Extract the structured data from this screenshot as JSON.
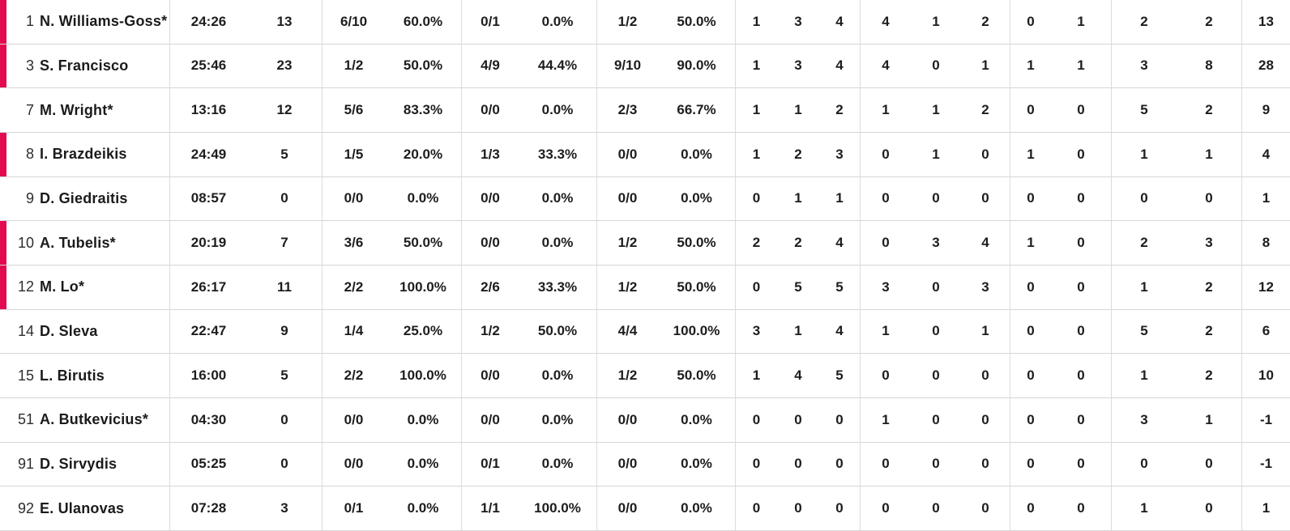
{
  "accent_color": "#e30b4f",
  "grid_color": "#d9d9d9",
  "table": {
    "players": [
      {
        "num": "1",
        "name": "N. Williams-Goss*",
        "on_court": true,
        "min": "24:26",
        "pts": "13",
        "fg2": "6/10",
        "fg2_pct": "60.0%",
        "fg3": "0/1",
        "fg3_pct": "0.0%",
        "ft": "1/2",
        "ft_pct": "50.0%",
        "oreb": "1",
        "dreb": "3",
        "reb": "4",
        "ast": "4",
        "stl": "1",
        "to": "2",
        "blk": "0",
        "blka": "1",
        "pf": "2",
        "fd": "2",
        "pir": "13"
      },
      {
        "num": "3",
        "name": "S. Francisco",
        "on_court": true,
        "min": "25:46",
        "pts": "23",
        "fg2": "1/2",
        "fg2_pct": "50.0%",
        "fg3": "4/9",
        "fg3_pct": "44.4%",
        "ft": "9/10",
        "ft_pct": "90.0%",
        "oreb": "1",
        "dreb": "3",
        "reb": "4",
        "ast": "4",
        "stl": "0",
        "to": "1",
        "blk": "1",
        "blka": "1",
        "pf": "3",
        "fd": "8",
        "pir": "28"
      },
      {
        "num": "7",
        "name": "M. Wright*",
        "on_court": false,
        "min": "13:16",
        "pts": "12",
        "fg2": "5/6",
        "fg2_pct": "83.3%",
        "fg3": "0/0",
        "fg3_pct": "0.0%",
        "ft": "2/3",
        "ft_pct": "66.7%",
        "oreb": "1",
        "dreb": "1",
        "reb": "2",
        "ast": "1",
        "stl": "1",
        "to": "2",
        "blk": "0",
        "blka": "0",
        "pf": "5",
        "fd": "2",
        "pir": "9"
      },
      {
        "num": "8",
        "name": "I. Brazdeikis",
        "on_court": true,
        "min": "24:49",
        "pts": "5",
        "fg2": "1/5",
        "fg2_pct": "20.0%",
        "fg3": "1/3",
        "fg3_pct": "33.3%",
        "ft": "0/0",
        "ft_pct": "0.0%",
        "oreb": "1",
        "dreb": "2",
        "reb": "3",
        "ast": "0",
        "stl": "1",
        "to": "0",
        "blk": "1",
        "blka": "0",
        "pf": "1",
        "fd": "1",
        "pir": "4"
      },
      {
        "num": "9",
        "name": "D. Giedraitis",
        "on_court": false,
        "min": "08:57",
        "pts": "0",
        "fg2": "0/0",
        "fg2_pct": "0.0%",
        "fg3": "0/0",
        "fg3_pct": "0.0%",
        "ft": "0/0",
        "ft_pct": "0.0%",
        "oreb": "0",
        "dreb": "1",
        "reb": "1",
        "ast": "0",
        "stl": "0",
        "to": "0",
        "blk": "0",
        "blka": "0",
        "pf": "0",
        "fd": "0",
        "pir": "1"
      },
      {
        "num": "10",
        "name": "A. Tubelis*",
        "on_court": true,
        "min": "20:19",
        "pts": "7",
        "fg2": "3/6",
        "fg2_pct": "50.0%",
        "fg3": "0/0",
        "fg3_pct": "0.0%",
        "ft": "1/2",
        "ft_pct": "50.0%",
        "oreb": "2",
        "dreb": "2",
        "reb": "4",
        "ast": "0",
        "stl": "3",
        "to": "4",
        "blk": "1",
        "blka": "0",
        "pf": "2",
        "fd": "3",
        "pir": "8"
      },
      {
        "num": "12",
        "name": "M. Lo*",
        "on_court": true,
        "min": "26:17",
        "pts": "11",
        "fg2": "2/2",
        "fg2_pct": "100.0%",
        "fg3": "2/6",
        "fg3_pct": "33.3%",
        "ft": "1/2",
        "ft_pct": "50.0%",
        "oreb": "0",
        "dreb": "5",
        "reb": "5",
        "ast": "3",
        "stl": "0",
        "to": "3",
        "blk": "0",
        "blka": "0",
        "pf": "1",
        "fd": "2",
        "pir": "12"
      },
      {
        "num": "14",
        "name": "D. Sleva",
        "on_court": false,
        "min": "22:47",
        "pts": "9",
        "fg2": "1/4",
        "fg2_pct": "25.0%",
        "fg3": "1/2",
        "fg3_pct": "50.0%",
        "ft": "4/4",
        "ft_pct": "100.0%",
        "oreb": "3",
        "dreb": "1",
        "reb": "4",
        "ast": "1",
        "stl": "0",
        "to": "1",
        "blk": "0",
        "blka": "0",
        "pf": "5",
        "fd": "2",
        "pir": "6"
      },
      {
        "num": "15",
        "name": "L. Birutis",
        "on_court": false,
        "min": "16:00",
        "pts": "5",
        "fg2": "2/2",
        "fg2_pct": "100.0%",
        "fg3": "0/0",
        "fg3_pct": "0.0%",
        "ft": "1/2",
        "ft_pct": "50.0%",
        "oreb": "1",
        "dreb": "4",
        "reb": "5",
        "ast": "0",
        "stl": "0",
        "to": "0",
        "blk": "0",
        "blka": "0",
        "pf": "1",
        "fd": "2",
        "pir": "10"
      },
      {
        "num": "51",
        "name": "A. Butkevicius*",
        "on_court": false,
        "min": "04:30",
        "pts": "0",
        "fg2": "0/0",
        "fg2_pct": "0.0%",
        "fg3": "0/0",
        "fg3_pct": "0.0%",
        "ft": "0/0",
        "ft_pct": "0.0%",
        "oreb": "0",
        "dreb": "0",
        "reb": "0",
        "ast": "1",
        "stl": "0",
        "to": "0",
        "blk": "0",
        "blka": "0",
        "pf": "3",
        "fd": "1",
        "pir": "-1"
      },
      {
        "num": "91",
        "name": "D. Sirvydis",
        "on_court": false,
        "min": "05:25",
        "pts": "0",
        "fg2": "0/0",
        "fg2_pct": "0.0%",
        "fg3": "0/1",
        "fg3_pct": "0.0%",
        "ft": "0/0",
        "ft_pct": "0.0%",
        "oreb": "0",
        "dreb": "0",
        "reb": "0",
        "ast": "0",
        "stl": "0",
        "to": "0",
        "blk": "0",
        "blka": "0",
        "pf": "0",
        "fd": "0",
        "pir": "-1"
      },
      {
        "num": "92",
        "name": "E. Ulanovas",
        "on_court": false,
        "min": "07:28",
        "pts": "3",
        "fg2": "0/1",
        "fg2_pct": "0.0%",
        "fg3": "1/1",
        "fg3_pct": "100.0%",
        "ft": "0/0",
        "ft_pct": "0.0%",
        "oreb": "0",
        "dreb": "0",
        "reb": "0",
        "ast": "0",
        "stl": "0",
        "to": "0",
        "blk": "0",
        "blka": "0",
        "pf": "1",
        "fd": "0",
        "pir": "1"
      }
    ]
  }
}
